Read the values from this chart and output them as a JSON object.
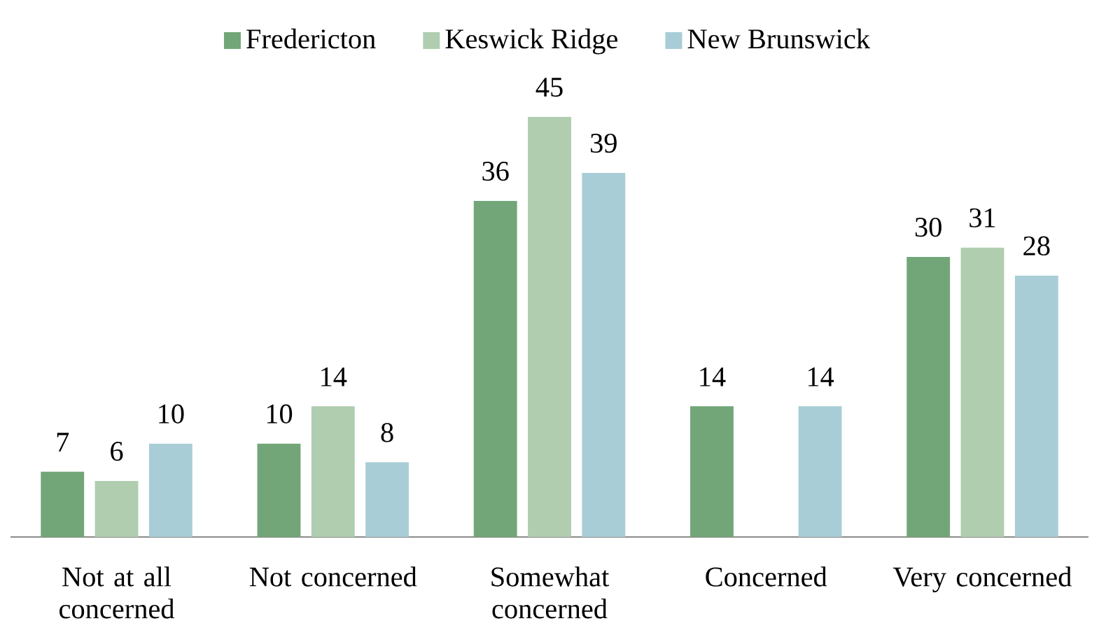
{
  "chart_data": {
    "type": "bar",
    "categories": [
      "Not at all concerned",
      "Not concerned",
      "Somewhat concerned",
      "Concerned",
      "Very concerned"
    ],
    "series": [
      {
        "name": "Fredericton",
        "color": "#72a678",
        "values": [
          7,
          10,
          36,
          14,
          30
        ]
      },
      {
        "name": "Keswick Ridge",
        "color": "#b0cdb0",
        "values": [
          6,
          14,
          45,
          null,
          31
        ]
      },
      {
        "name": "New Brunswick",
        "color": "#a8cdd6",
        "values": [
          10,
          8,
          39,
          14,
          28
        ]
      }
    ],
    "data_labels": true,
    "legend": "top"
  }
}
